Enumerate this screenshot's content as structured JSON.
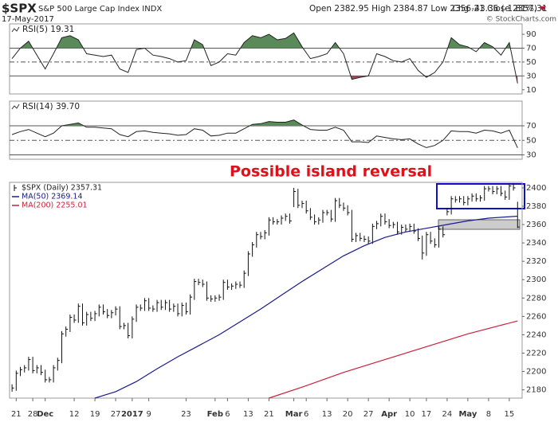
{
  "header": {
    "symbol": "$SPX",
    "name": "S&P 500 Large Cap Index INDX",
    "date": "17-May-2017",
    "ohlc": "Open 2382.95 High 2384.87 Low 2356.21 Close 2357.31",
    "change": "Chg -43.36 (-1.81%)",
    "credit": "© StockCharts.com"
  },
  "chart_data": [
    {
      "type": "line",
      "title": "RSI(5) 19.31",
      "xlim": [
        -0.6,
        123.1
      ],
      "ylim": [
        4,
        105
      ],
      "yticks": [
        10,
        30,
        50,
        70,
        90
      ],
      "levels": [
        30,
        50,
        70
      ],
      "fill_above": 70,
      "fill_below": 30,
      "fill_above_color": "#5a8a5a",
      "fill_below_color": "#9a4a5a",
      "x": [
        0,
        2,
        4,
        6,
        8,
        10,
        12,
        14,
        16,
        18,
        20,
        22,
        24,
        26,
        28,
        30,
        32,
        34,
        36,
        38,
        40,
        42,
        44,
        46,
        48,
        50,
        52,
        54,
        56,
        58,
        60,
        62,
        64,
        66,
        68,
        70,
        72,
        74,
        76,
        78,
        80,
        82,
        84,
        86,
        88,
        90,
        92,
        94,
        96,
        98,
        100,
        102,
        104,
        106,
        108,
        110,
        112,
        114,
        116,
        118,
        120,
        122
      ],
      "series": [
        {
          "color": "#222222",
          "values": [
            55,
            70,
            80,
            60,
            40,
            62,
            85,
            88,
            82,
            62,
            60,
            58,
            60,
            40,
            35,
            68,
            70,
            60,
            58,
            55,
            50,
            52,
            82,
            75,
            45,
            50,
            62,
            60,
            78,
            88,
            85,
            90,
            82,
            84,
            92,
            72,
            55,
            58,
            62,
            78,
            62,
            25,
            28,
            30,
            62,
            58,
            52,
            50,
            55,
            38,
            28,
            35,
            50,
            85,
            75,
            72,
            65,
            78,
            72,
            60,
            78,
            19.31
          ]
        }
      ]
    },
    {
      "type": "line",
      "title": "RSI(14) 39.70",
      "xlim": [
        -0.6,
        123.1
      ],
      "ylim": [
        24,
        104
      ],
      "yticks": [
        30,
        50,
        70
      ],
      "levels": [
        30,
        50,
        70
      ],
      "fill_above": 70,
      "fill_below": 30,
      "fill_above_color": "#5a8a5a",
      "fill_below_color": "#9a4a5a",
      "x": [
        0,
        2,
        4,
        6,
        8,
        10,
        12,
        14,
        16,
        18,
        20,
        22,
        24,
        26,
        28,
        30,
        32,
        34,
        36,
        38,
        40,
        42,
        44,
        46,
        48,
        50,
        52,
        54,
        56,
        58,
        60,
        62,
        64,
        66,
        68,
        70,
        72,
        74,
        76,
        78,
        80,
        82,
        84,
        86,
        88,
        90,
        92,
        94,
        96,
        98,
        100,
        102,
        104,
        106,
        108,
        110,
        112,
        114,
        116,
        118,
        120,
        122
      ],
      "series": [
        {
          "color": "#222222",
          "values": [
            58,
            62,
            65,
            60,
            55,
            60,
            70,
            72,
            74,
            68,
            68,
            67,
            66,
            58,
            55,
            62,
            63,
            61,
            60,
            59,
            57,
            58,
            66,
            64,
            56,
            57,
            60,
            60,
            66,
            72,
            73,
            76,
            75,
            75,
            78,
            71,
            65,
            64,
            64,
            68,
            64,
            48,
            48,
            47,
            56,
            54,
            52,
            51,
            52,
            45,
            40,
            43,
            50,
            63,
            62,
            62,
            60,
            64,
            63,
            60,
            64,
            39.7
          ]
        }
      ]
    },
    {
      "type": "ohlc",
      "annotation": "Possible island reversal",
      "xlim": [
        -0.6,
        123.1
      ],
      "ylim": [
        2171,
        2406
      ],
      "yticks": [
        2180,
        2200,
        2220,
        2240,
        2260,
        2280,
        2300,
        2320,
        2340,
        2360,
        2380,
        2400
      ],
      "xticks": [
        {
          "value": 1,
          "label": "21"
        },
        {
          "value": 5,
          "label": "28"
        },
        {
          "value": 8,
          "label": "Dec"
        },
        {
          "value": 15,
          "label": "12"
        },
        {
          "value": 20,
          "label": "19"
        },
        {
          "value": 25,
          "label": "27"
        },
        {
          "value": 29,
          "label": "2017"
        },
        {
          "value": 33,
          "label": "9"
        },
        {
          "value": 42,
          "label": "23"
        },
        {
          "value": 49,
          "label": "Feb"
        },
        {
          "value": 52,
          "label": "6"
        },
        {
          "value": 57,
          "label": "13"
        },
        {
          "value": 62,
          "label": "21"
        },
        {
          "value": 68,
          "label": "Mar"
        },
        {
          "value": 71,
          "label": "6"
        },
        {
          "value": 76,
          "label": "13"
        },
        {
          "value": 81,
          "label": "20"
        },
        {
          "value": 86,
          "label": "27"
        },
        {
          "value": 91,
          "label": "Apr"
        },
        {
          "value": 96,
          "label": "10"
        },
        {
          "value": 100,
          "label": "17"
        },
        {
          "value": 105,
          "label": "24"
        },
        {
          "value": 110,
          "label": "May"
        },
        {
          "value": 115,
          "label": "8"
        },
        {
          "value": 120,
          "label": "15"
        }
      ],
      "series": [
        {
          "name": "$SPX (Daily) 2357.31",
          "color": "#111111",
          "high": [
            2186,
            2201,
            2205,
            2207,
            2216,
            2216,
            2207,
            2207,
            2202,
            2194,
            2207,
            2215,
            2244,
            2249,
            2262,
            2262,
            2274,
            2274,
            2265,
            2265,
            2266,
            2273,
            2273,
            2268,
            2267,
            2271,
            2271,
            2253,
            2253,
            2260,
            2273,
            2273,
            2280,
            2280,
            2272,
            2278,
            2278,
            2278,
            2278,
            2274,
            2274,
            2275,
            2275,
            2284,
            2301,
            2301,
            2300,
            2298,
            2283,
            2283,
            2284,
            2300,
            2300,
            2296,
            2298,
            2298,
            2310,
            2331,
            2341,
            2352,
            2352,
            2354,
            2368,
            2368,
            2366,
            2370,
            2372,
            2372,
            2400,
            2399,
            2386,
            2386,
            2378,
            2371,
            2368,
            2376,
            2376,
            2376,
            2389,
            2389,
            2384,
            2381,
            2376,
            2351,
            2351,
            2348,
            2347,
            2361,
            2364,
            2372,
            2372,
            2366,
            2363,
            2363,
            2360,
            2360,
            2361,
            2361,
            2356,
            2348,
            2352,
            2352,
            2345,
            2358,
            2358,
            2378,
            2391,
            2391,
            2391,
            2391,
            2391,
            2394,
            2394,
            2392,
            2402,
            2402,
            2402,
            2402,
            2402,
            2397,
            2405,
            2405,
            2384.87
          ],
          "low": [
            2178,
            2179,
            2195,
            2199,
            2201,
            2198,
            2198,
            2196,
            2188,
            2188,
            2188,
            2201,
            2209,
            2238,
            2243,
            2253,
            2253,
            2250,
            2250,
            2255,
            2255,
            2260,
            2262,
            2258,
            2258,
            2261,
            2246,
            2246,
            2236,
            2236,
            2254,
            2266,
            2266,
            2266,
            2265,
            2265,
            2267,
            2267,
            2265,
            2265,
            2260,
            2260,
            2262,
            2262,
            2278,
            2294,
            2292,
            2277,
            2276,
            2276,
            2277,
            2278,
            2289,
            2289,
            2290,
            2291,
            2291,
            2304,
            2325,
            2335,
            2344,
            2344,
            2348,
            2360,
            2360,
            2360,
            2364,
            2361,
            2379,
            2378,
            2378,
            2372,
            2365,
            2360,
            2360,
            2362,
            2370,
            2363,
            2363,
            2378,
            2375,
            2370,
            2341,
            2341,
            2342,
            2341,
            2339,
            2339,
            2355,
            2358,
            2360,
            2356,
            2356,
            2349,
            2349,
            2352,
            2352,
            2350,
            2342,
            2322,
            2326,
            2339,
            2335,
            2335,
            2346,
            2370,
            2371,
            2384,
            2384,
            2381,
            2381,
            2385,
            2385,
            2385,
            2386,
            2396,
            2393,
            2393,
            2391,
            2387,
            2387,
            2397,
            2356.21
          ],
          "close": [
            2182,
            2198,
            2202,
            2204,
            2213,
            2201,
            2204,
            2199,
            2191,
            2191,
            2204,
            2212,
            2241,
            2246,
            2259,
            2256,
            2271,
            2253,
            2262,
            2258,
            2263,
            2270,
            2265,
            2261,
            2264,
            2268,
            2249,
            2250,
            2239,
            2257,
            2270,
            2269,
            2277,
            2269,
            2268,
            2275,
            2270,
            2275,
            2268,
            2271,
            2263,
            2272,
            2265,
            2281,
            2298,
            2297,
            2295,
            2280,
            2279,
            2280,
            2281,
            2297,
            2292,
            2293,
            2295,
            2294,
            2307,
            2328,
            2338,
            2349,
            2347,
            2351,
            2365,
            2363,
            2363,
            2367,
            2369,
            2364,
            2396,
            2381,
            2383,
            2375,
            2368,
            2363,
            2365,
            2373,
            2373,
            2366,
            2386,
            2381,
            2378,
            2373,
            2344,
            2348,
            2345,
            2344,
            2342,
            2358,
            2361,
            2369,
            2363,
            2359,
            2360,
            2352,
            2357,
            2355,
            2358,
            2353,
            2345,
            2329,
            2349,
            2342,
            2338,
            2355,
            2349,
            2374,
            2388,
            2387,
            2388,
            2384,
            2388,
            2391,
            2388,
            2389,
            2399,
            2399,
            2396,
            2399,
            2394,
            2390,
            2402,
            2400,
            2357.31
          ]
        },
        {
          "name": "MA(50) 2369.14",
          "color": "#1a1a8c",
          "x": [
            20,
            25,
            30,
            35,
            40,
            45,
            50,
            55,
            60,
            65,
            70,
            75,
            80,
            85,
            90,
            95,
            100,
            105,
            110,
            115,
            122
          ],
          "values": [
            2171,
            2178,
            2189,
            2203,
            2216,
            2228,
            2240,
            2254,
            2268,
            2283,
            2298,
            2312,
            2326,
            2337,
            2346,
            2352,
            2356,
            2360,
            2364,
            2367,
            2369.14
          ]
        },
        {
          "name": "MA(200) 2255.01",
          "color": "#cc1f3a",
          "x": [
            62,
            70,
            80,
            90,
            100,
            110,
            122
          ],
          "values": [
            2171,
            2183,
            2199,
            2213,
            2227,
            2241,
            2255.01
          ]
        }
      ]
    }
  ]
}
